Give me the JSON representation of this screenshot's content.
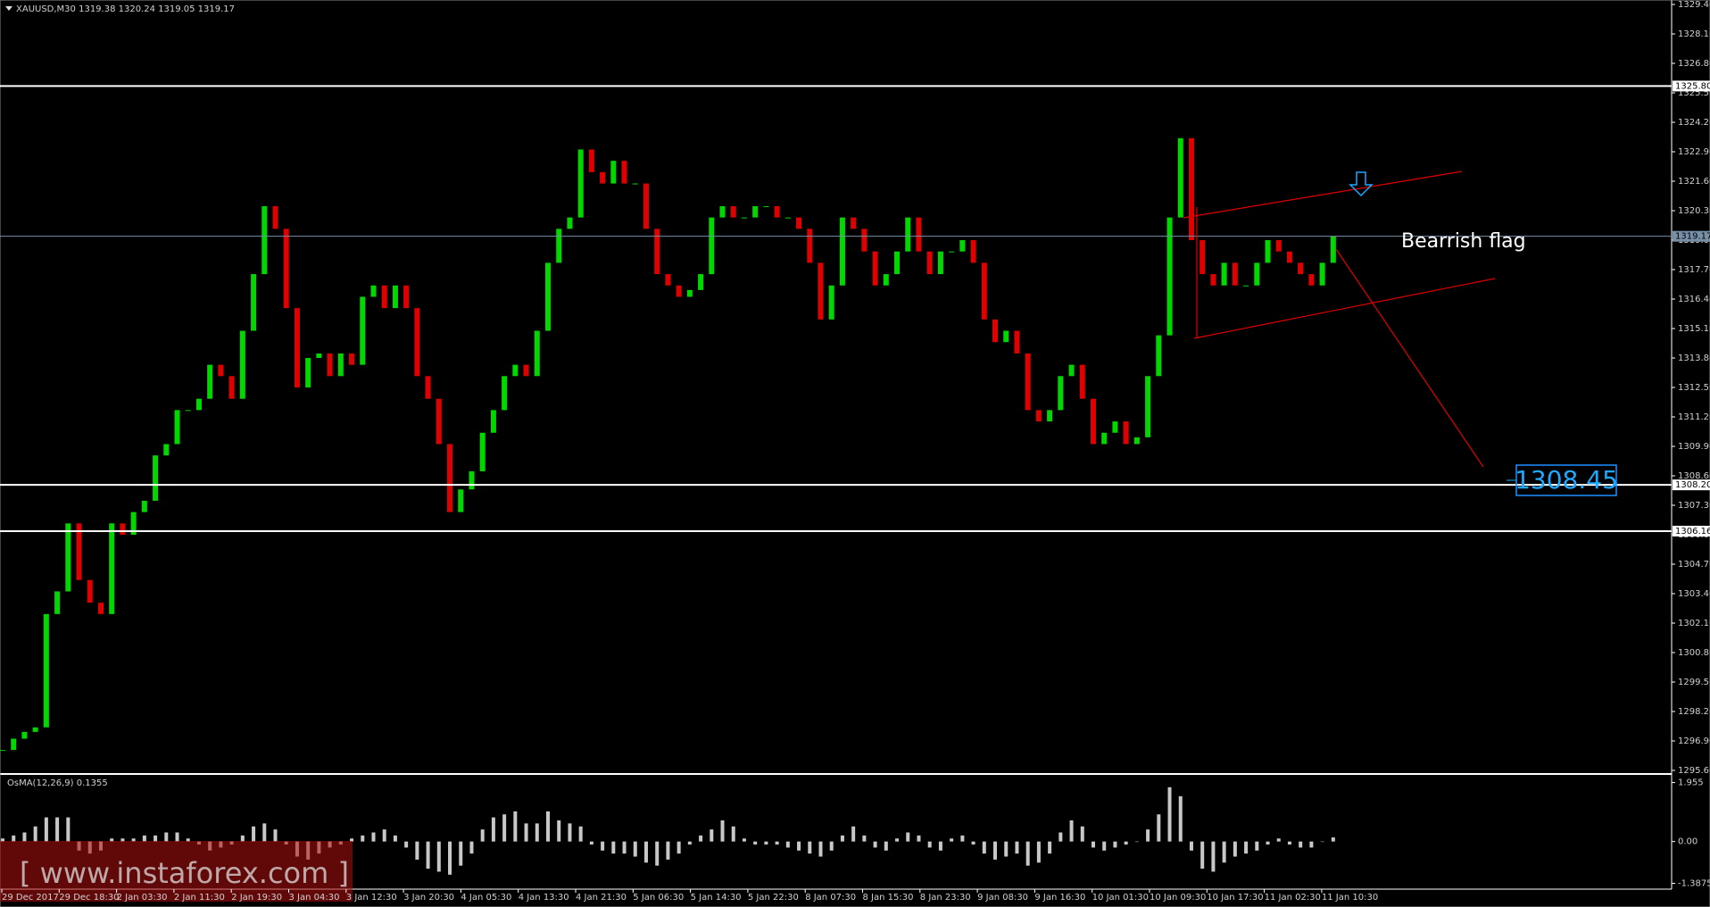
{
  "chart_data": [
    {
      "type": "candlestick",
      "title": "XAUUSD,M30  1319.38 1320.24 1319.05 1319.17",
      "values": [
        1296.5,
        1297,
        1297.3,
        1297.5,
        1302.5,
        1303.5,
        1306.5,
        1304,
        1303,
        1302.5,
        1306.5,
        1306,
        1307,
        1307.5,
        1309.5,
        1310,
        1311.5,
        1311.5,
        1312,
        1313.5,
        1313,
        1312,
        1315,
        1317.5,
        1320.5,
        1319.5,
        1316,
        1312.5,
        1313.8,
        1314,
        1313,
        1314,
        1313.5,
        1316.5,
        1317,
        1316,
        1317,
        1316,
        1313,
        1312,
        1310,
        1307,
        1308,
        1308.8,
        1310.5,
        1311.5,
        1313,
        1313.5,
        1313,
        1315,
        1318,
        1319.5,
        1320,
        1323,
        1322,
        1321.5,
        1322.5,
        1321.5,
        1321.5,
        1319.5,
        1317.5,
        1317,
        1316.5,
        1316.8,
        1317.5,
        1320,
        1320.5,
        1320,
        1320,
        1320.5,
        1320.5,
        1320,
        1320,
        1319.5,
        1318,
        1315.5,
        1317,
        1320,
        1319.5,
        1318.5,
        1317,
        1317.5,
        1318.5,
        1320,
        1318.5,
        1317.5,
        1318.5,
        1318.5,
        1319,
        1318,
        1315.5,
        1314.5,
        1315,
        1314,
        1311.5,
        1311,
        1311.5,
        1313,
        1313.5,
        1312,
        1310,
        1310.5,
        1311,
        1310,
        1310.3,
        1313,
        1314.8,
        1320,
        1323.5,
        1319,
        1317.5,
        1317,
        1318,
        1317,
        1317,
        1318,
        1319,
        1318.5,
        1318,
        1317.5,
        1317,
        1318,
        1319.17
      ],
      "up_color": "#00d800",
      "down_color": "#e00000",
      "ylim": [
        1295.6,
        1329.4
      ],
      "yticks": [
        {
          "value": 1329.4,
          "label": "1329.40"
        },
        {
          "value": 1328.1,
          "label": "1328.10"
        },
        {
          "value": 1326.8,
          "label": "1326.80"
        },
        {
          "value": 1325.5,
          "label": "1325.50"
        },
        {
          "value": 1324.2,
          "label": "1324.20"
        },
        {
          "value": 1322.9,
          "label": "1322.90"
        },
        {
          "value": 1321.6,
          "label": "1321.60"
        },
        {
          "value": 1320.3,
          "label": "1320.30"
        },
        {
          "value": 1319,
          "label": "1319.00"
        },
        {
          "value": 1317.7,
          "label": "1317.70"
        },
        {
          "value": 1316.4,
          "label": "1316.40"
        },
        {
          "value": 1315.1,
          "label": "1315.10"
        },
        {
          "value": 1313.8,
          "label": "1313.80"
        },
        {
          "value": 1312.5,
          "label": "1312.50"
        },
        {
          "value": 1311.2,
          "label": "1311.20"
        },
        {
          "value": 1309.9,
          "label": "1309.90"
        },
        {
          "value": 1308.6,
          "label": "1308.60"
        },
        {
          "value": 1307.3,
          "label": "1307.30"
        },
        {
          "value": 1306,
          "label": "1306.00"
        },
        {
          "value": 1304.7,
          "label": "1304.70"
        },
        {
          "value": 1303.4,
          "label": "1303.40"
        },
        {
          "value": 1302.1,
          "label": "1302.10"
        },
        {
          "value": 1300.8,
          "label": "1300.80"
        },
        {
          "value": 1299.5,
          "label": "1299.50"
        },
        {
          "value": 1298.2,
          "label": "1298.20"
        },
        {
          "value": 1296.9,
          "label": "1296.90"
        },
        {
          "value": 1295.6,
          "label": "1295.60"
        }
      ],
      "levels": [
        {
          "value": 1325.8,
          "label": "1325.80",
          "color": "#ffffff"
        },
        {
          "value": 1319.17,
          "label": "1319.17",
          "color": "#7890a8"
        },
        {
          "value": 1308.2,
          "label": "1308.20",
          "color": "#ffffff"
        },
        {
          "value": 1306.16,
          "label": "1306.16",
          "color": "#ffffff"
        }
      ],
      "time_labels": [
        "29 Dec 2017",
        "29 Dec 18:30",
        "2 Jan 03:30",
        "2 Jan 11:30",
        "2 Jan 19:30",
        "3 Jan 04:30",
        "3 Jan 12:30",
        "3 Jan 20:30",
        "4 Jan 05:30",
        "4 Jan 13:30",
        "4 Jan 21:30",
        "5 Jan 06:30",
        "5 Jan 14:30",
        "5 Jan 22:30",
        "8 Jan 07:30",
        "8 Jan 15:30",
        "8 Jan 23:30",
        "9 Jan 08:30",
        "9 Jan 16:30",
        "10 Jan 01:30",
        "10 Jan 09:30",
        "10 Jan 17:30",
        "11 Jan 02:30",
        "11 Jan 10:30"
      ],
      "annotations": {
        "pattern": "Bearrish flag",
        "target": "1308.45"
      },
      "grid": false
    },
    {
      "type": "histogram",
      "title": "OsMA(12,26,9) 0.1355",
      "color": "#c8c8c8",
      "values": [
        0.1,
        0.2,
        0.3,
        0.5,
        0.8,
        0.8,
        0.8,
        -0.3,
        -0.4,
        -0.3,
        0.1,
        0.1,
        0.1,
        0.2,
        0.2,
        0.3,
        0.3,
        0.1,
        -0.1,
        -0.3,
        -0.2,
        -0.1,
        0.2,
        0.5,
        0.6,
        0.4,
        -0.1,
        -0.5,
        -0.6,
        -0.4,
        -0.2,
        -0.1,
        0.1,
        0.2,
        0.3,
        0.4,
        0.2,
        -0.2,
        -0.6,
        -0.9,
        -1.0,
        -1.1,
        -0.8,
        -0.4,
        0.4,
        0.8,
        0.9,
        1.0,
        0.6,
        0.6,
        1.0,
        0.7,
        0.6,
        0.5,
        -0.1,
        -0.3,
        -0.4,
        -0.4,
        -0.5,
        -0.7,
        -0.8,
        -0.6,
        -0.4,
        -0.1,
        0.2,
        0.4,
        0.7,
        0.5,
        0.1,
        -0.1,
        -0.1,
        -0.1,
        -0.2,
        -0.3,
        -0.4,
        -0.5,
        -0.3,
        0.2,
        0.5,
        0.2,
        -0.2,
        -0.3,
        0.1,
        0.3,
        0.2,
        -0.2,
        -0.3,
        0.1,
        0.2,
        -0.1,
        -0.4,
        -0.6,
        -0.5,
        -0.4,
        -0.8,
        -0.7,
        -0.4,
        0.3,
        0.7,
        0.5,
        -0.2,
        -0.3,
        -0.2,
        -0.1,
        0.0,
        0.4,
        0.9,
        1.8,
        1.5,
        -0.3,
        -0.9,
        -1.0,
        -0.7,
        -0.5,
        -0.4,
        -0.3,
        -0.1,
        0.1,
        -0.1,
        -0.2,
        -0.2,
        0.0,
        0.1355
      ],
      "ylim": [
        -1.55,
        2.18
      ],
      "yticks": [
        1.955,
        {
          "value": 0,
          "label": "0.00"
        },
        -1.3875
      ],
      "watermark": "[ www.instaforex.com ]"
    }
  ]
}
